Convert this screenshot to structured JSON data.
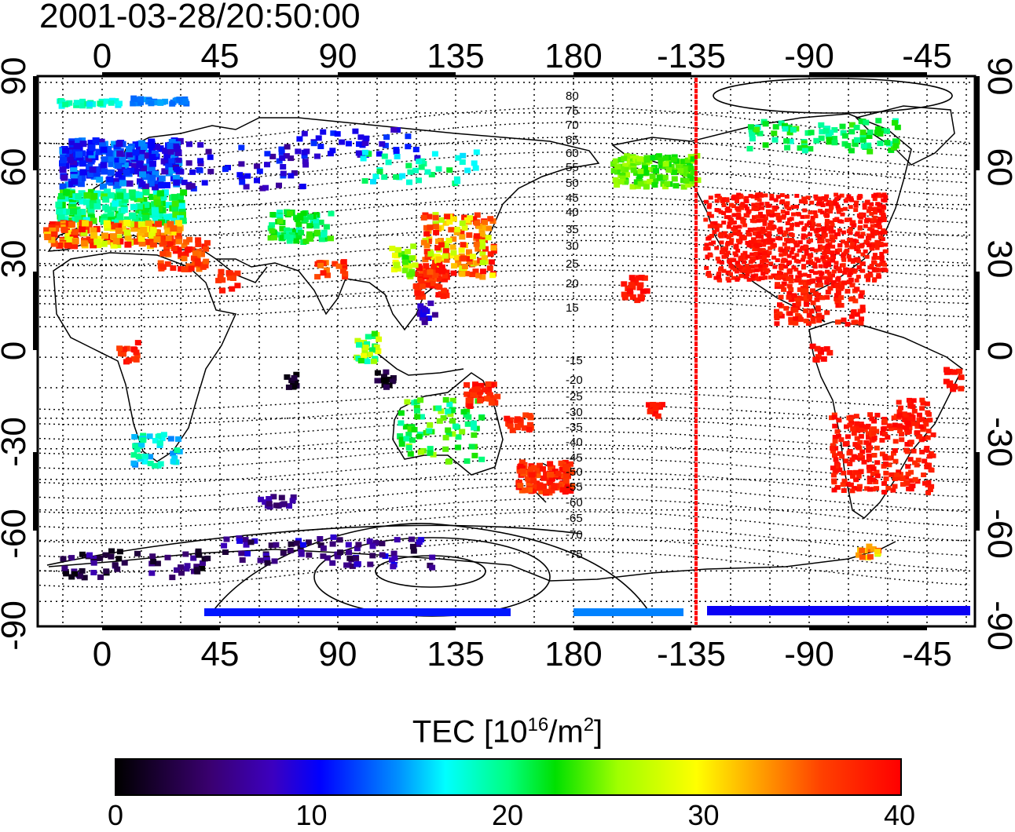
{
  "title": "2001-03-28/20:50:00",
  "top_lon_labels": [
    "0",
    "45",
    "90",
    "135",
    "180",
    "-135",
    "-90",
    "-45"
  ],
  "bottom_lon_labels": [
    "0",
    "45",
    "90",
    "135",
    "180",
    "-135",
    "-90",
    "-45"
  ],
  "left_lat_labels": [
    "90",
    "60",
    "30",
    "0",
    "-30",
    "-60",
    "-90"
  ],
  "right_lat_labels": [
    "90",
    "60",
    "30",
    "0",
    "-30",
    "-60",
    "-90"
  ],
  "contour_labels": [
    "80",
    "75",
    "70",
    "65",
    "60",
    "55",
    "50",
    "45",
    "40",
    "35",
    "30",
    "25",
    "20",
    "15",
    "-15",
    "-20",
    "-25",
    "-30",
    "-35",
    "-40",
    "-45",
    "-50",
    "-55",
    "-60",
    "-65",
    "-70",
    "-75"
  ],
  "colorbar": {
    "title_main": "TEC  [10",
    "title_sup1": "16",
    "title_mid": "/m",
    "title_sup2": "2",
    "title_end": "]",
    "ticks": [
      "0",
      "10",
      "20",
      "30",
      "40"
    ],
    "min": 0,
    "max": 40
  },
  "marker_line_lon": -138,
  "colors": {
    "terminator": "#ff0000",
    "high": "#ff0000",
    "low": "#000000"
  }
}
